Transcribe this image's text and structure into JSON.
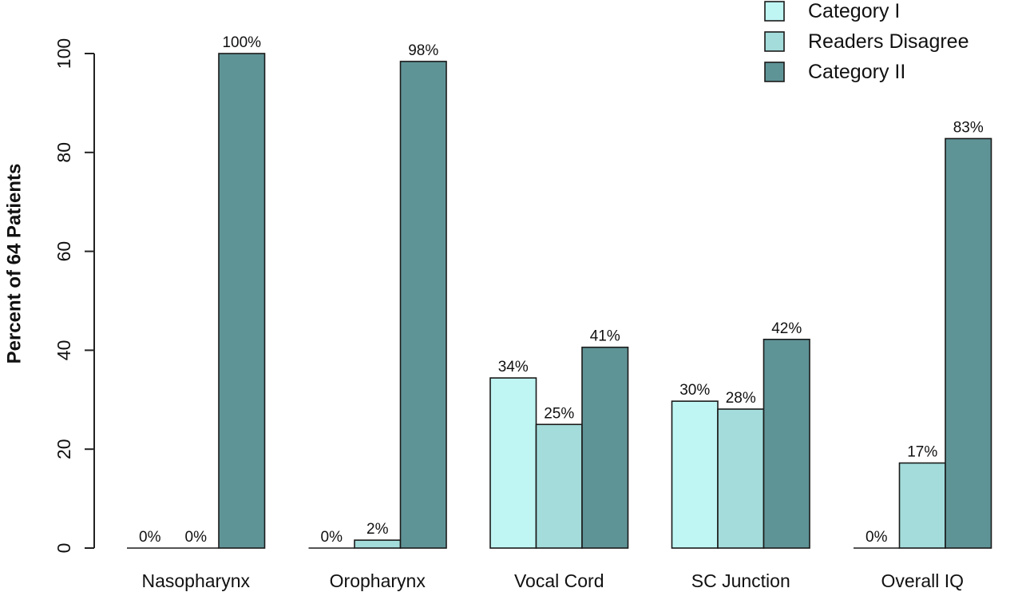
{
  "chart_data": {
    "type": "bar",
    "title": "",
    "xlabel": "",
    "ylabel": "Percent of 64 Patients",
    "ylim": [
      0,
      100
    ],
    "yticks": [
      0,
      20,
      40,
      60,
      80,
      100
    ],
    "grid": false,
    "legend_position": "top-right",
    "categories": [
      "Nasopharynx",
      "Oropharynx",
      "Vocal Cord",
      "SC Junction",
      "Overall IQ"
    ],
    "series": [
      {
        "name": "Category I",
        "color": "#bff5f3",
        "values": [
          0,
          0,
          34.4,
          29.7,
          0
        ],
        "labels": [
          "0%",
          "0%",
          "34%",
          "30%",
          "0%"
        ]
      },
      {
        "name": "Readers Disagree",
        "color": "#a3dcdb",
        "values": [
          0,
          1.6,
          25.0,
          28.1,
          17.2
        ],
        "labels": [
          "0%",
          "2%",
          "25%",
          "28%",
          "17%"
        ]
      },
      {
        "name": "Category II",
        "color": "#5f9497",
        "values": [
          100,
          98.4,
          40.6,
          42.2,
          82.8
        ],
        "labels": [
          "100%",
          "98%",
          "41%",
          "42%",
          "83%"
        ]
      }
    ]
  }
}
